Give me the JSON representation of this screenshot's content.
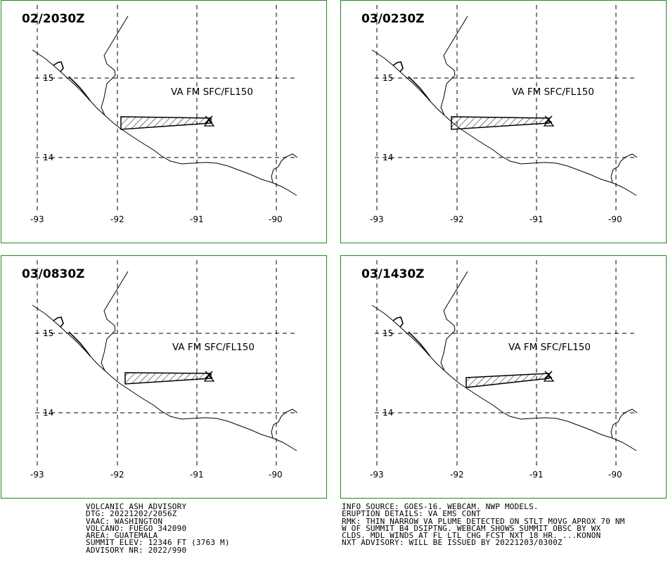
{
  "panels": [
    {
      "title": "02/2030Z",
      "label": "VA FM SFC/FL150",
      "lat_labels": [
        "15",
        "14"
      ],
      "lon_labels": [
        "-93",
        "-92",
        "-91",
        "-90"
      ]
    },
    {
      "title": "03/0230Z",
      "label": "VA FM SFC/FL150",
      "lat_labels": [
        "15",
        "14"
      ],
      "lon_labels": [
        "-93",
        "-92",
        "-91",
        "-90"
      ]
    },
    {
      "title": "03/0830Z",
      "label": "VA FM SFC/FL150",
      "lat_labels": [
        "15",
        "14"
      ],
      "lon_labels": [
        "-93",
        "-92",
        "-91",
        "-90"
      ]
    },
    {
      "title": "03/1430Z",
      "label": "VA FM SFC/FL150",
      "lat_labels": [
        "15",
        "14"
      ],
      "lon_labels": [
        "-93",
        "-92",
        "-91",
        "-90"
      ]
    }
  ],
  "advisory_left": [
    "VOLCANIC ASH ADVISORY",
    "DTG: 20221202/2056Z",
    "VAAC: WASHINGTON",
    "VOLCANO: FUEGO 342090",
    "AREA: GUATEMALA",
    "SUMMIT ELEV: 12346 FT (3763 M)",
    "ADVISORY NR: 2022/990"
  ],
  "advisory_right": [
    "INFO SOURCE: GOES-16. WEBCAM. NWP MODELS.",
    "ERUPTION DETAILS: VA EMS CONT",
    "RMK: THIN NARROW VA PLUME DETECTED ON STLT MOVG APROX 70 NM",
    "W OF SUMMIT B4 DSIPTNG. WEBCAM SHOWS SUMMIT OBSC BY WX",
    "CLDS. MDL WINDS AT FL LTL CHG FCST NXT 18 HR. ...KONON",
    "NXT ADVISORY: WILL BE ISSUED BY 20221203/0300Z"
  ],
  "map_colors": {
    "border": "#1f8a1f",
    "lines": "#000000"
  }
}
